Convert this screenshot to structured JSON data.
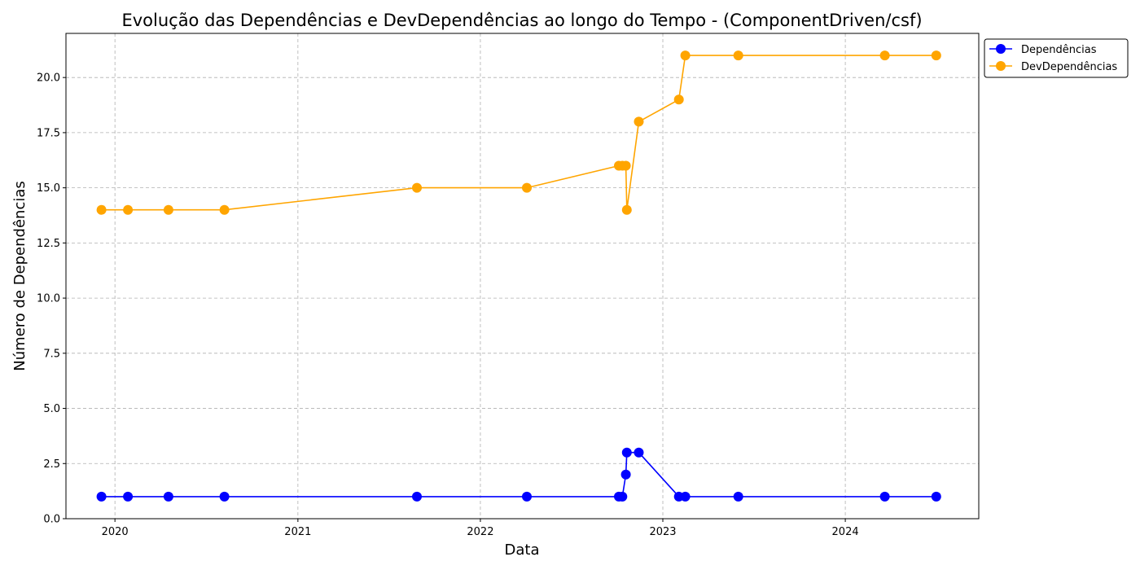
{
  "chart_data": {
    "type": "line",
    "title": "Evolução das Dependências e DevDependências ao longo do Tempo - (ComponentDriven/csf)",
    "xlabel": "Data",
    "ylabel": "Número de Dependências",
    "x_tick_labels": [
      "2020",
      "2021",
      "2022",
      "2023",
      "2024"
    ],
    "y_tick_labels": [
      "0.0",
      "2.5",
      "5.0",
      "7.5",
      "10.0",
      "12.5",
      "15.0",
      "17.5",
      "20.0"
    ],
    "xlim": [
      "2019-09-25",
      "2024-09-24"
    ],
    "ylim": [
      0,
      22
    ],
    "grid": true,
    "legend_position": "outside top-right",
    "x": [
      "2019-12-05",
      "2020-01-27",
      "2020-04-17",
      "2020-08-07",
      "2021-08-27",
      "2022-04-04",
      "2022-10-05",
      "2022-10-12",
      "2022-10-19",
      "2022-10-21",
      "2022-11-14",
      "2023-02-02",
      "2023-02-15",
      "2023-06-01",
      "2024-03-20",
      "2024-07-01"
    ],
    "series": [
      {
        "name": "Dependências",
        "color": "#0000ff",
        "values": [
          1,
          1,
          1,
          1,
          1,
          1,
          1,
          1,
          2,
          3,
          3,
          1,
          1,
          1,
          1,
          1
        ]
      },
      {
        "name": "DevDependências",
        "color": "#ffa500",
        "values": [
          14,
          14,
          14,
          14,
          15,
          15,
          16,
          16,
          16,
          14,
          18,
          19,
          21,
          21,
          21,
          21
        ]
      }
    ]
  }
}
